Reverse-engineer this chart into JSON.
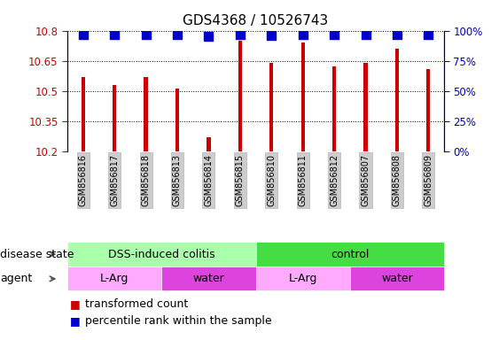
{
  "title": "GDS4368 / 10526743",
  "samples": [
    "GSM856816",
    "GSM856817",
    "GSM856818",
    "GSM856813",
    "GSM856814",
    "GSM856815",
    "GSM856810",
    "GSM856811",
    "GSM856812",
    "GSM856807",
    "GSM856808",
    "GSM856809"
  ],
  "bar_values": [
    10.57,
    10.53,
    10.57,
    10.51,
    10.27,
    10.75,
    10.64,
    10.74,
    10.62,
    10.64,
    10.71,
    10.61
  ],
  "percentile_values": [
    97,
    97,
    97,
    97,
    95,
    97,
    96,
    97,
    97,
    97,
    97,
    97
  ],
  "bar_color": "#cc0000",
  "percentile_color": "#0000cc",
  "ylim_left": [
    10.2,
    10.8
  ],
  "yticks_left": [
    10.2,
    10.35,
    10.5,
    10.65,
    10.8
  ],
  "ytick_labels_left": [
    "10.2",
    "10.35",
    "10.5",
    "10.65",
    "10.8"
  ],
  "ylim_right": [
    0,
    100
  ],
  "yticks_right": [
    0,
    25,
    50,
    75,
    100
  ],
  "ytick_labels_right": [
    "0%",
    "25%",
    "50%",
    "75%",
    "100%"
  ],
  "disease_state_groups": [
    {
      "label": "DSS-induced colitis",
      "start": 0,
      "end": 6,
      "color": "#aaffaa"
    },
    {
      "label": "control",
      "start": 6,
      "end": 12,
      "color": "#44dd44"
    }
  ],
  "agent_groups": [
    {
      "label": "L-Arg",
      "start": 0,
      "end": 3,
      "color": "#ffaaff"
    },
    {
      "label": "water",
      "start": 3,
      "end": 6,
      "color": "#dd44dd"
    },
    {
      "label": "L-Arg",
      "start": 6,
      "end": 9,
      "color": "#ffaaff"
    },
    {
      "label": "water",
      "start": 9,
      "end": 12,
      "color": "#dd44dd"
    }
  ],
  "legend_items": [
    {
      "label": "transformed count",
      "color": "#cc0000"
    },
    {
      "label": "percentile rank within the sample",
      "color": "#0000cc"
    }
  ],
  "grid_color": "black",
  "bar_width": 0.12,
  "percentile_marker_size": 55,
  "title_fontsize": 11,
  "tick_fontsize": 8.5,
  "label_fontsize": 9,
  "annotation_fontsize": 9,
  "xtick_fontsize": 7
}
